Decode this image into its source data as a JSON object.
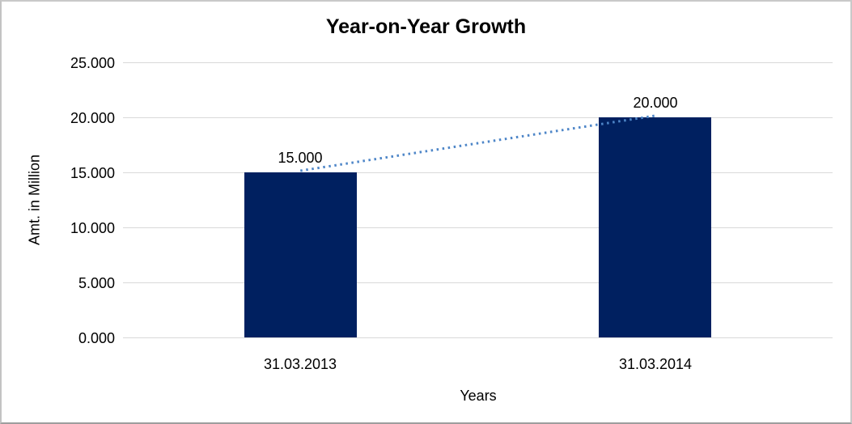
{
  "chart": {
    "title": "Year-on-Year Growth",
    "x_axis_title": "Years",
    "y_axis_title": "Amt. in Million"
  },
  "chart_data": {
    "type": "bar",
    "title": "Year-on-Year Growth",
    "xlabel": "Years",
    "ylabel": "Amt. in Million",
    "categories": [
      "31.03.2013",
      "31.03.2014"
    ],
    "values": [
      15000,
      20000
    ],
    "value_labels": [
      "15.000",
      "20.000"
    ],
    "ylim": [
      0,
      25000
    ],
    "yticks": [
      {
        "value": 0,
        "label": "0.000"
      },
      {
        "value": 5000,
        "label": "5.000"
      },
      {
        "value": 10000,
        "label": "10.000"
      },
      {
        "value": 15000,
        "label": "15.000"
      },
      {
        "value": 20000,
        "label": "20.000"
      },
      {
        "value": 25000,
        "label": "25.000"
      }
    ],
    "grid": true,
    "legend": false,
    "colors": {
      "bar": "#002060",
      "trendline": "#4e86c8",
      "gridline": "#d9d9d9",
      "text": "#000000"
    },
    "trendline": {
      "style": "dotted",
      "from_category": "31.03.2013",
      "to_category": "31.03.2014"
    }
  }
}
